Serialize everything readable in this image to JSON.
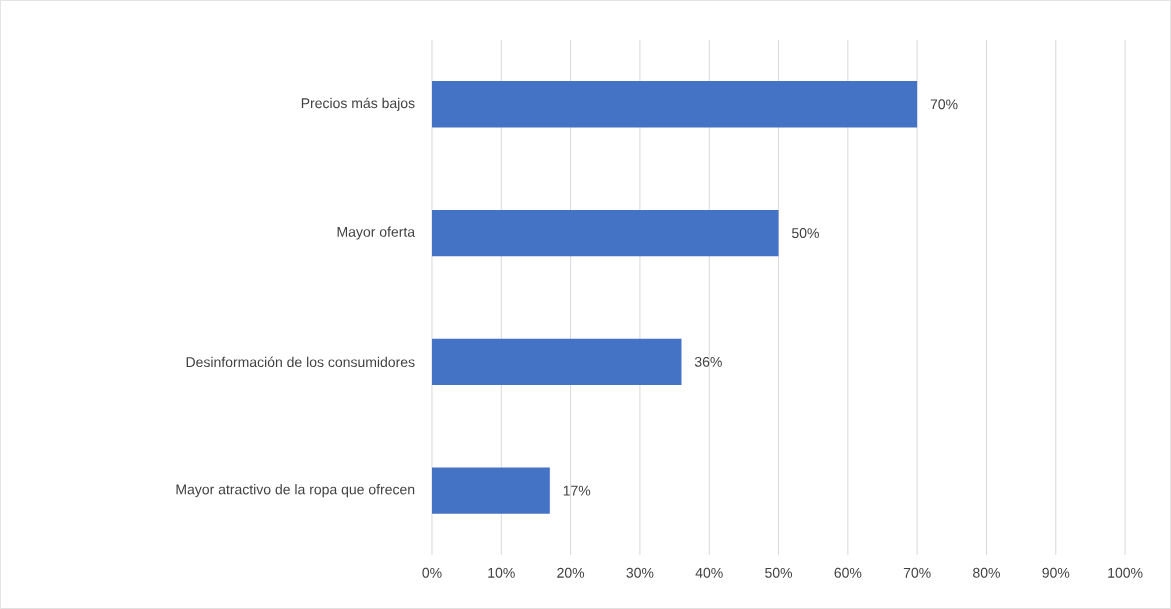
{
  "chart_data": {
    "type": "bar",
    "orientation": "horizontal",
    "categories": [
      "Precios más bajos",
      "Mayor oferta",
      "Desinformación de los consumidores",
      "Mayor atractivo de la ropa que ofrecen"
    ],
    "values": [
      70,
      50,
      36,
      17
    ],
    "value_labels": [
      "70%",
      "50%",
      "36%",
      "17%"
    ],
    "color": "#4472c4",
    "xlim": [
      0,
      100
    ],
    "xticks": [
      {
        "value": 0,
        "label": "0%"
      },
      {
        "value": 10,
        "label": "10%"
      },
      {
        "value": 20,
        "label": "20%"
      },
      {
        "value": 30,
        "label": "30%"
      },
      {
        "value": 40,
        "label": "40%"
      },
      {
        "value": 50,
        "label": "50%"
      },
      {
        "value": 60,
        "label": "60%"
      },
      {
        "value": 70,
        "label": "70%"
      },
      {
        "value": 80,
        "label": "80%"
      },
      {
        "value": 90,
        "label": "90%"
      },
      {
        "value": 100,
        "label": "100%"
      }
    ],
    "grid": "x"
  }
}
